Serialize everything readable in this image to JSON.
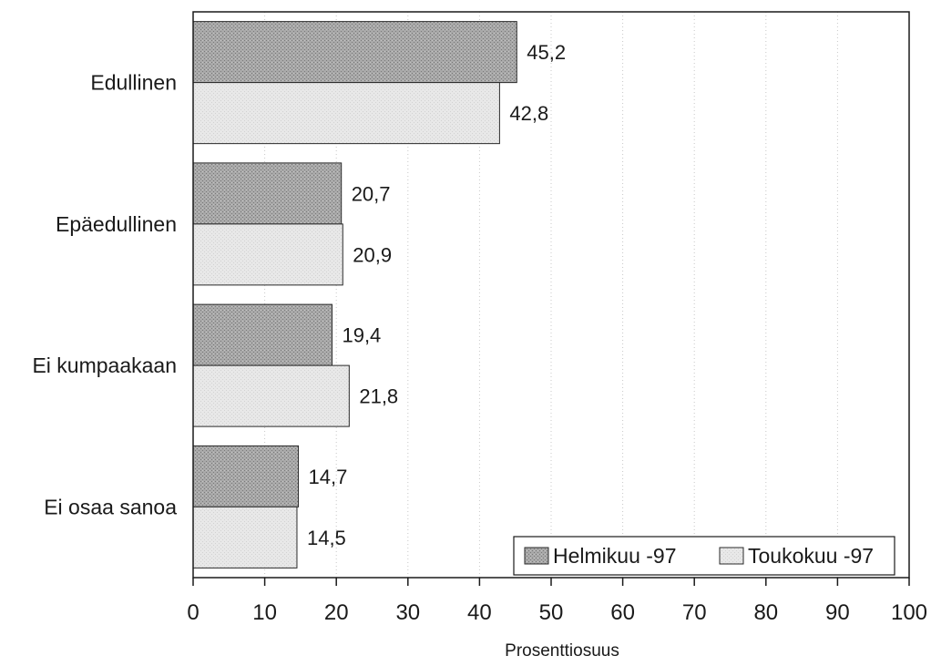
{
  "chart_data": {
    "type": "bar",
    "orientation": "horizontal",
    "categories": [
      "Edullinen",
      "Epäedullinen",
      "Ei kumpaakaan",
      "Ei osaa sanoa"
    ],
    "series": [
      {
        "name": "Helmikuu -97",
        "values": [
          45.2,
          20.7,
          19.4,
          14.7
        ],
        "labels": [
          "45,2",
          "20,7",
          "19,4",
          "14,7"
        ],
        "color": "#a3a3a3"
      },
      {
        "name": "Toukokuu -97",
        "values": [
          42.8,
          20.9,
          21.8,
          14.5
        ],
        "labels": [
          "42,8",
          "20,9",
          "21,8",
          "14,5"
        ],
        "color": "#e4e4e4"
      }
    ],
    "xlabel": "Prosenttiosuus",
    "xlim": [
      0,
      100
    ],
    "xticks": [
      0,
      10,
      20,
      30,
      40,
      50,
      60,
      70,
      80,
      90,
      100
    ],
    "grid": true,
    "legend_position": "bottom-right"
  }
}
